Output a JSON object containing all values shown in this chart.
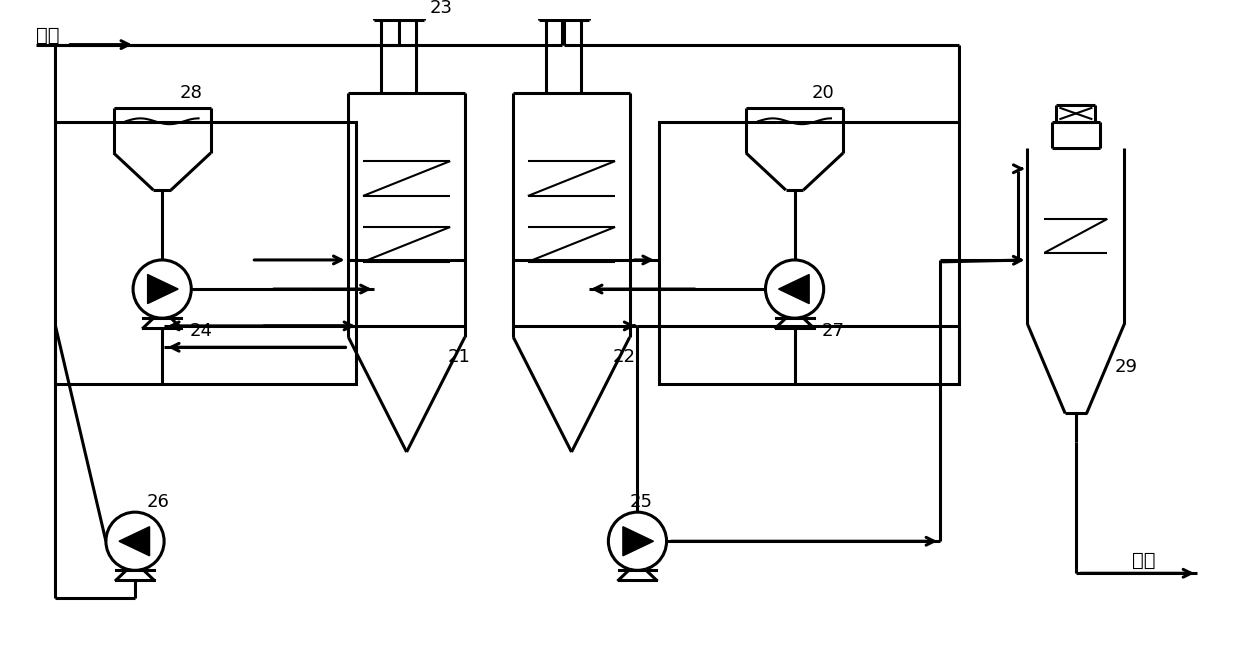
{
  "background_color": "#ffffff",
  "line_color": "#000000",
  "line_width": 2.2,
  "thin_lw": 1.5,
  "labels": {
    "solvent_in": "溶剂",
    "product_out": "浆液",
    "label_20": "20",
    "label_21": "21",
    "label_22": "22",
    "label_23": "23",
    "label_24": "24",
    "label_25": "25",
    "label_26": "26",
    "label_27": "27",
    "label_28": "28",
    "label_29": "29"
  },
  "font_size": 13
}
